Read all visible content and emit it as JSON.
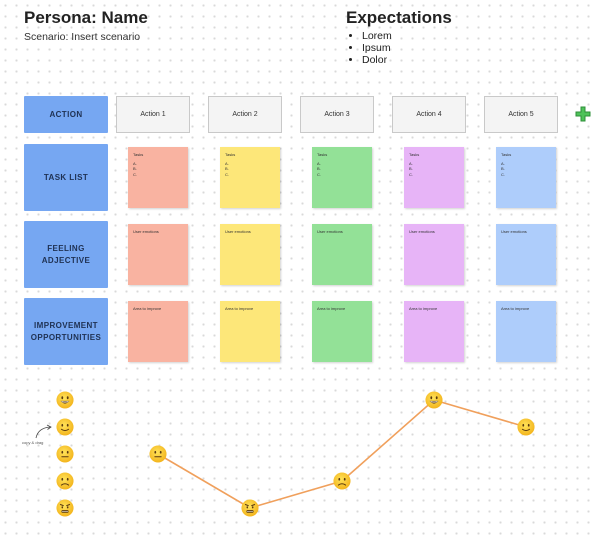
{
  "header": {
    "title": "Persona: Name",
    "subtitle": "Scenario: Insert scenario"
  },
  "expectations": {
    "title": "Expectations",
    "items": [
      "Lorem",
      "Ipsum",
      "Dolor"
    ]
  },
  "rows": {
    "action": "ACTION",
    "task_list": "TASK LIST",
    "feeling": "FEELING ADJECTIVE",
    "improvement": "IMPROVEMENT OPPORTUNITIES"
  },
  "actions": [
    "Action 1",
    "Action 2",
    "Action 3",
    "Action 4",
    "Action 5"
  ],
  "sticky_colors": [
    "#f9b3a1",
    "#fde779",
    "#93e197",
    "#e7b4f7",
    "#aecdfb"
  ],
  "task_sticky": {
    "heading": "Tasks",
    "items": [
      "A.",
      "B.",
      "C."
    ]
  },
  "feeling_sticky": {
    "text": "User emotions"
  },
  "improvement_sticky": {
    "text": "Area to improve"
  },
  "legend": {
    "note": "copy & drag",
    "faces": [
      "grinning",
      "smiling",
      "neutral",
      "frowning",
      "angry"
    ]
  },
  "emotion_curve": {
    "color": "#f0a05c",
    "points": [
      "neutral",
      "angry",
      "frowning",
      "grinning",
      "smiling"
    ]
  },
  "icons": {
    "add": "plus-icon",
    "arrow": "curved-arrow-icon"
  }
}
